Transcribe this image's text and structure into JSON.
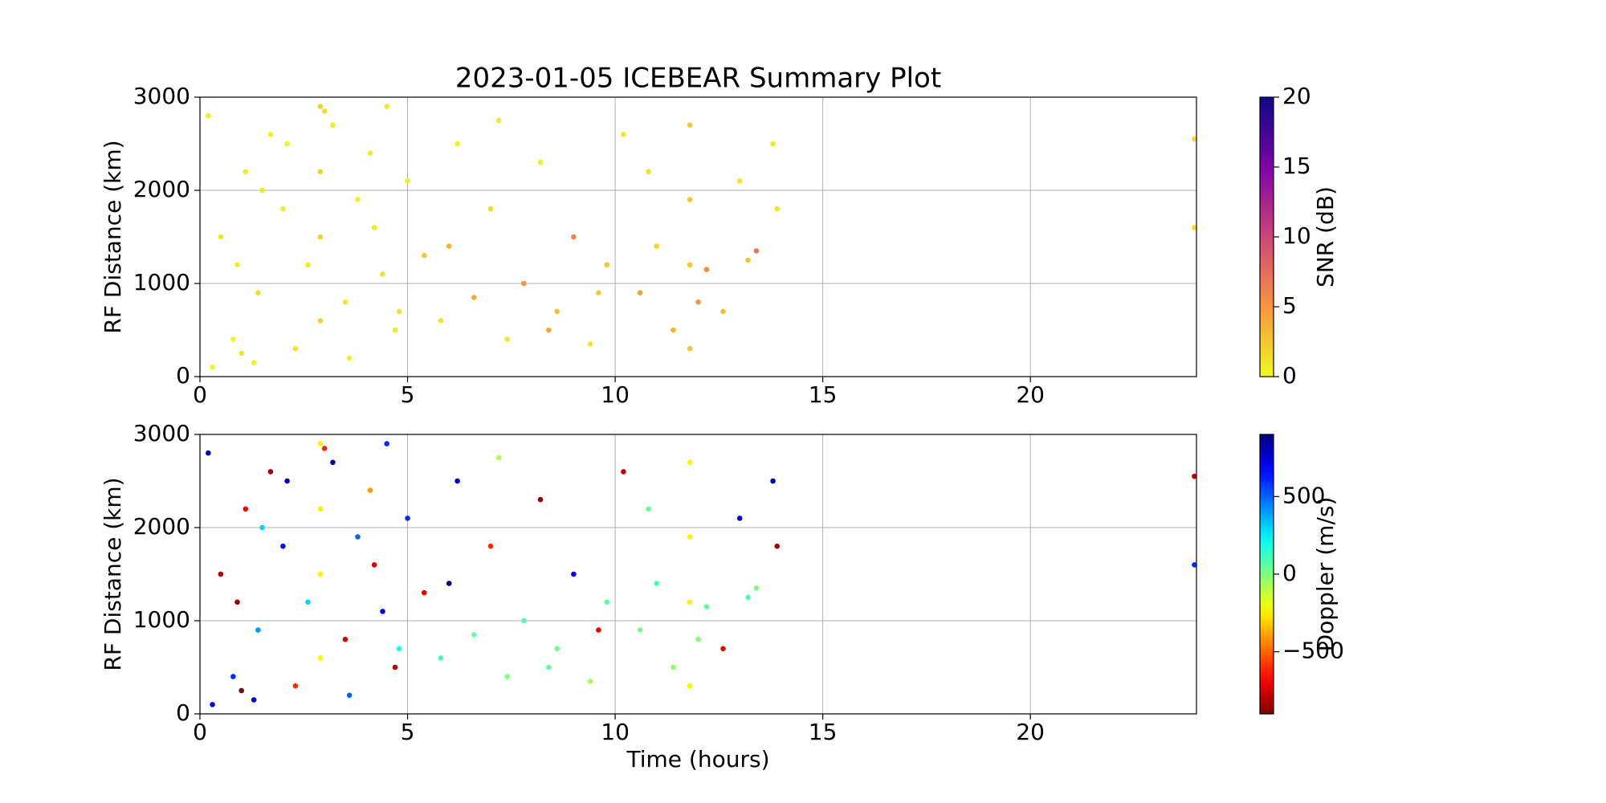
{
  "chart_data": [
    {
      "type": "scatter",
      "title": "2023-01-05 ICEBEAR Summary Plot",
      "ylabel": "RF Distance (km)",
      "xlim": [
        0,
        24
      ],
      "xticks": [
        0,
        5,
        10,
        15,
        20
      ],
      "ylim": [
        0,
        3000
      ],
      "yticks": [
        0,
        1000,
        2000,
        3000
      ],
      "grid": true,
      "x": [
        0.2,
        0.5,
        0.8,
        1.1,
        1.4,
        1.7,
        2.0,
        2.3,
        2.6,
        2.9,
        2.9,
        2.9,
        2.9,
        3.2,
        3.5,
        3.8,
        4.1,
        4.4,
        4.7,
        5.0,
        5.4,
        5.8,
        6.2,
        6.6,
        7.0,
        7.4,
        7.8,
        8.2,
        8.6,
        9.0,
        9.4,
        9.8,
        10.2,
        10.6,
        11.0,
        11.4,
        11.8,
        11.8,
        11.8,
        11.8,
        12.2,
        12.6,
        13.0,
        13.4,
        13.8,
        23.95,
        23.95,
        0.3,
        0.9,
        1.5,
        2.1,
        3.0,
        3.6,
        4.2,
        4.8,
        6.0,
        7.2,
        8.4,
        9.6,
        10.8,
        12.0,
        13.2,
        13.9,
        1.0,
        1.3,
        4.5
      ],
      "values": [
        2800,
        1500,
        400,
        2200,
        900,
        2600,
        1800,
        300,
        1200,
        2900,
        2200,
        1500,
        600,
        2700,
        800,
        1900,
        2400,
        1100,
        500,
        2100,
        1300,
        600,
        2500,
        850,
        1800,
        400,
        1000,
        2300,
        700,
        1500,
        350,
        1200,
        2600,
        900,
        1400,
        500,
        2700,
        1900,
        1200,
        300,
        1150,
        700,
        2100,
        1350,
        2500,
        2550,
        1600,
        100,
        1200,
        2000,
        2500,
        2850,
        200,
        1600,
        700,
        1400,
        2750,
        500,
        900,
        2200,
        800,
        1250,
        1800,
        250,
        150,
        2900
      ],
      "color_values": [
        0.5,
        1,
        0.3,
        0.8,
        1.2,
        0.4,
        0.6,
        1,
        0.7,
        2,
        2,
        2,
        2,
        0.5,
        0.9,
        0.3,
        0.6,
        1.1,
        0.8,
        0.5,
        2.5,
        1,
        0.4,
        4,
        1.5,
        0.8,
        5,
        0.6,
        3,
        6,
        1,
        2.5,
        0.7,
        4.5,
        1.8,
        3.5,
        2.5,
        2.5,
        2.5,
        2.5,
        5.5,
        3,
        1,
        7,
        0.8,
        1.5,
        1.5,
        0.2,
        0.6,
        0.9,
        0.4,
        1.3,
        0.5,
        0.7,
        1,
        3.5,
        0.6,
        4,
        2,
        1.2,
        5,
        2.8,
        1.1,
        0.9,
        0.3,
        0.6
      ],
      "colorbar": {
        "label": "SNR (dB)",
        "colormap": "plasma_r",
        "lim": [
          0,
          20
        ],
        "ticks": [
          0,
          5,
          10,
          15,
          20
        ]
      }
    },
    {
      "type": "scatter",
      "ylabel": "RF Distance (km)",
      "xlabel": "Time (hours)",
      "xlim": [
        0,
        24
      ],
      "xticks": [
        0,
        5,
        10,
        15,
        20
      ],
      "ylim": [
        0,
        3000
      ],
      "yticks": [
        0,
        1000,
        2000,
        3000
      ],
      "grid": true,
      "x": [
        0.2,
        0.5,
        0.8,
        1.1,
        1.4,
        1.7,
        2.0,
        2.3,
        2.6,
        2.9,
        2.9,
        2.9,
        2.9,
        3.2,
        3.5,
        3.8,
        4.1,
        4.4,
        4.7,
        5.0,
        5.4,
        5.8,
        6.2,
        6.6,
        7.0,
        7.4,
        7.8,
        8.2,
        8.6,
        9.0,
        9.4,
        9.8,
        10.2,
        10.6,
        11.0,
        11.4,
        11.8,
        11.8,
        11.8,
        11.8,
        12.2,
        12.6,
        13.0,
        13.4,
        13.8,
        23.95,
        23.95,
        0.3,
        0.9,
        1.5,
        2.1,
        3.0,
        3.6,
        4.2,
        4.8,
        6.0,
        7.2,
        8.4,
        9.6,
        10.8,
        12.0,
        13.2,
        13.9,
        1.0,
        1.3,
        4.5
      ],
      "values": [
        2800,
        1500,
        400,
        2200,
        900,
        2600,
        1800,
        300,
        1200,
        2900,
        2200,
        1500,
        600,
        2700,
        800,
        1900,
        2400,
        1100,
        500,
        2100,
        1300,
        600,
        2500,
        850,
        1800,
        400,
        1000,
        2300,
        700,
        1500,
        350,
        1200,
        2600,
        900,
        1400,
        500,
        2700,
        1900,
        1200,
        300,
        1150,
        700,
        2100,
        1350,
        2500,
        2550,
        1600,
        100,
        1200,
        2000,
        2500,
        2850,
        200,
        1600,
        700,
        1400,
        2750,
        500,
        900,
        2200,
        800,
        1250,
        1800,
        250,
        150,
        2900
      ],
      "color_values": [
        800,
        -800,
        600,
        -700,
        400,
        -850,
        700,
        -600,
        300,
        -250,
        -250,
        -250,
        -250,
        850,
        -750,
        500,
        -400,
        750,
        -800,
        600,
        -700,
        100,
        800,
        50,
        -600,
        0,
        80,
        -850,
        30,
        700,
        -50,
        60,
        -800,
        20,
        100,
        -30,
        -250,
        -250,
        -250,
        -250,
        50,
        -700,
        750,
        0,
        850,
        -800,
        600,
        700,
        -850,
        300,
        800,
        -600,
        500,
        -750,
        200,
        900,
        -100,
        50,
        -700,
        40,
        0,
        80,
        -850,
        -900,
        800,
        600
      ],
      "colorbar": {
        "label": "Doppler (m/s)",
        "colormap": "jet_r",
        "lim": [
          -900,
          900
        ],
        "ticks": [
          {
            "value": -500,
            "label": "−500"
          },
          0,
          500
        ]
      }
    }
  ]
}
